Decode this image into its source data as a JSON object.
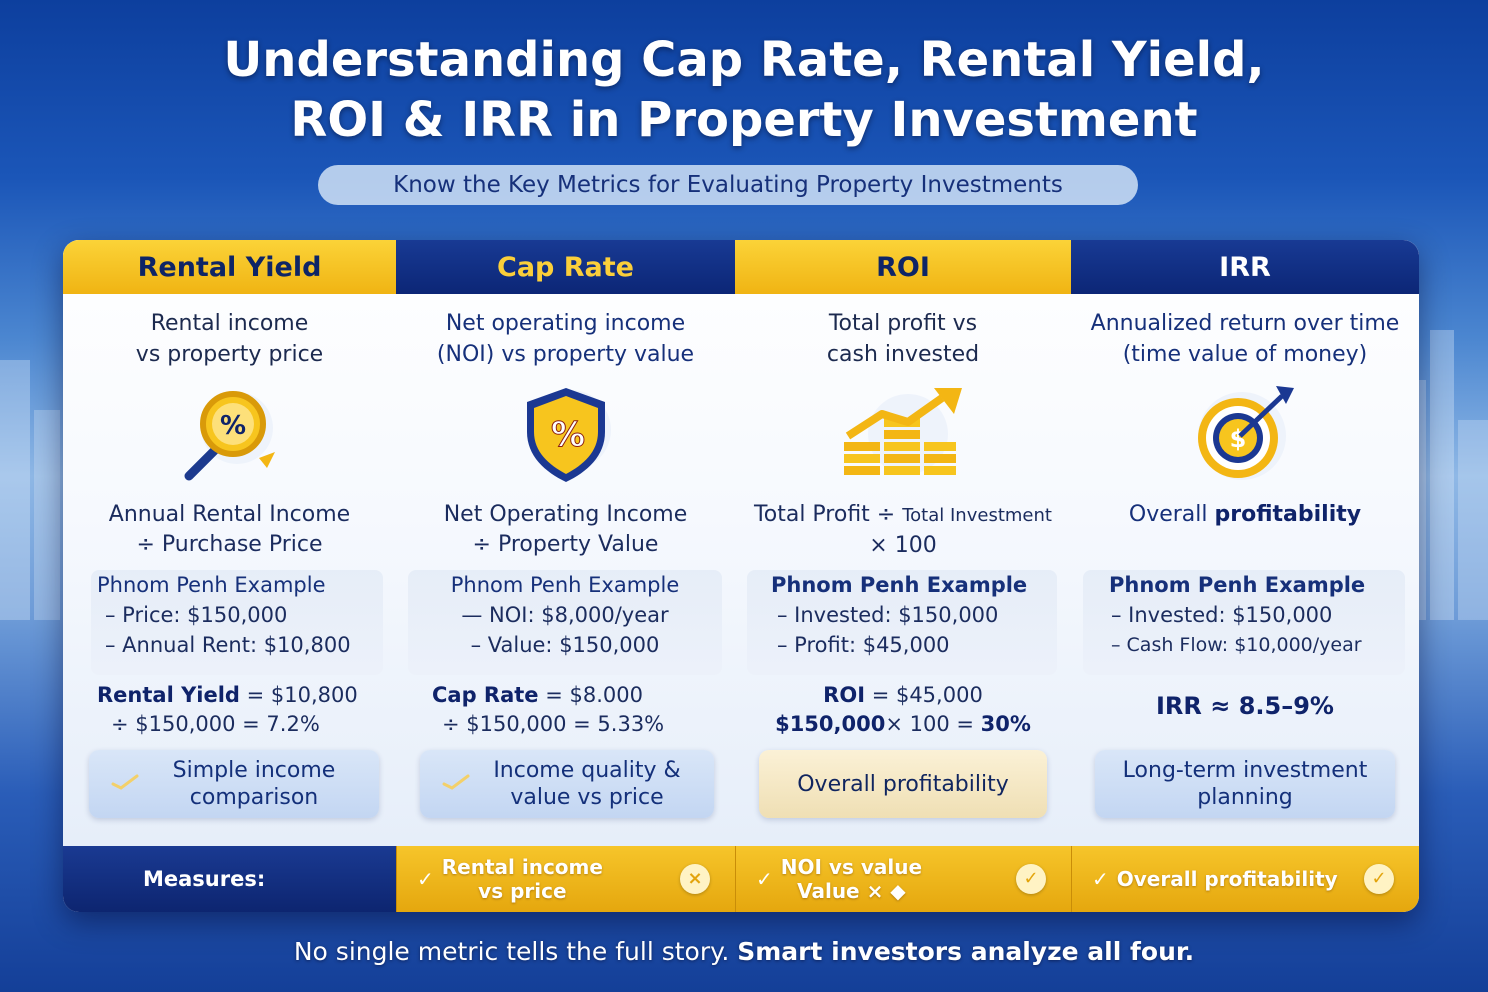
{
  "header": {
    "title_line1": "Understanding Cap Rate, Rental Yield,",
    "title_line2": "ROI & IRR in Property Investment",
    "subtitle": "Know the Key Metrics for Evaluating Property Investments"
  },
  "columns": [
    {
      "name": "Rental Yield",
      "desc_line1": "Rental income",
      "desc_line2": "vs property price",
      "icon": "magnifier-percent-icon",
      "formula_line1": "Annual Rental Income",
      "formula_line2": "÷ Purchase Price",
      "example_title": "Phnom Penh Example",
      "example_lines": [
        "– Price: $150,000",
        "– Annual Rent: $10,800"
      ],
      "result_label": "Rental Yield",
      "result_line1_rest": " = $10,800",
      "result_line2": "÷ $150,000 = 7.2%",
      "pill": "Simple income comparison"
    },
    {
      "name": "Cap Rate",
      "desc_line1": "Net operating income",
      "desc_line2": "(NOI) vs property value",
      "icon": "shield-percent-icon",
      "formula_line1": "Net Operating Income",
      "formula_line2": "÷ Property Value",
      "example_title": "Phnom Penh Example",
      "example_lines": [
        "— NOI: $8,000/year",
        "– Value: $150,000"
      ],
      "result_label": "Cap Rate",
      "result_line1_rest": " = $8.000",
      "result_line2": "÷ $150,000 = 5.33%",
      "pill": "Income quality & value vs price"
    },
    {
      "name": "ROI",
      "desc_line1": "Total profit vs",
      "desc_line2": "cash invested",
      "icon": "coins-growth-icon",
      "formula_line1_a": "Total Profit ÷ ",
      "formula_line1_b": "Total Investment",
      "formula_line2": "× 100",
      "example_title": "Phnom Penh Example",
      "example_lines": [
        "– Invested: $150,000",
        "– Profit: $45,000"
      ],
      "result_label": "ROI",
      "result_line1_rest": " = $45,000",
      "result_line2_a": "$150,000",
      "result_line2_b": "× 100 = ",
      "result_line2_c": "30%",
      "pill": "Overall profitability"
    },
    {
      "name": "IRR",
      "desc_line1": "Annualized return over time",
      "desc_line2": "(time value of money)",
      "icon": "target-dollar-icon",
      "formula_a": "Overall ",
      "formula_b": "profitability",
      "example_title": "Phnom Penh Example",
      "example_lines": [
        "– Invested: $150,000",
        "– Cash Flow: $10,000/year"
      ],
      "result_line1": "IRR ≈ 8.5–9%",
      "pill": "Long-term investment planning"
    }
  ],
  "footer": {
    "label": "Measures:",
    "items": [
      {
        "check": "✓",
        "line1": "Rental income",
        "line2": "vs price",
        "badge": "×"
      },
      {
        "check": "✓",
        "line1": "NOI vs value",
        "line2": "Value ⨯ ◆",
        "badge": "✓"
      },
      {
        "check": "✓",
        "line1": "Overall profitability",
        "line2": "",
        "badge": "✓"
      }
    ]
  },
  "note": {
    "plain": "No single metric tells the full story. ",
    "bold": "Smart investors analyze all four."
  }
}
